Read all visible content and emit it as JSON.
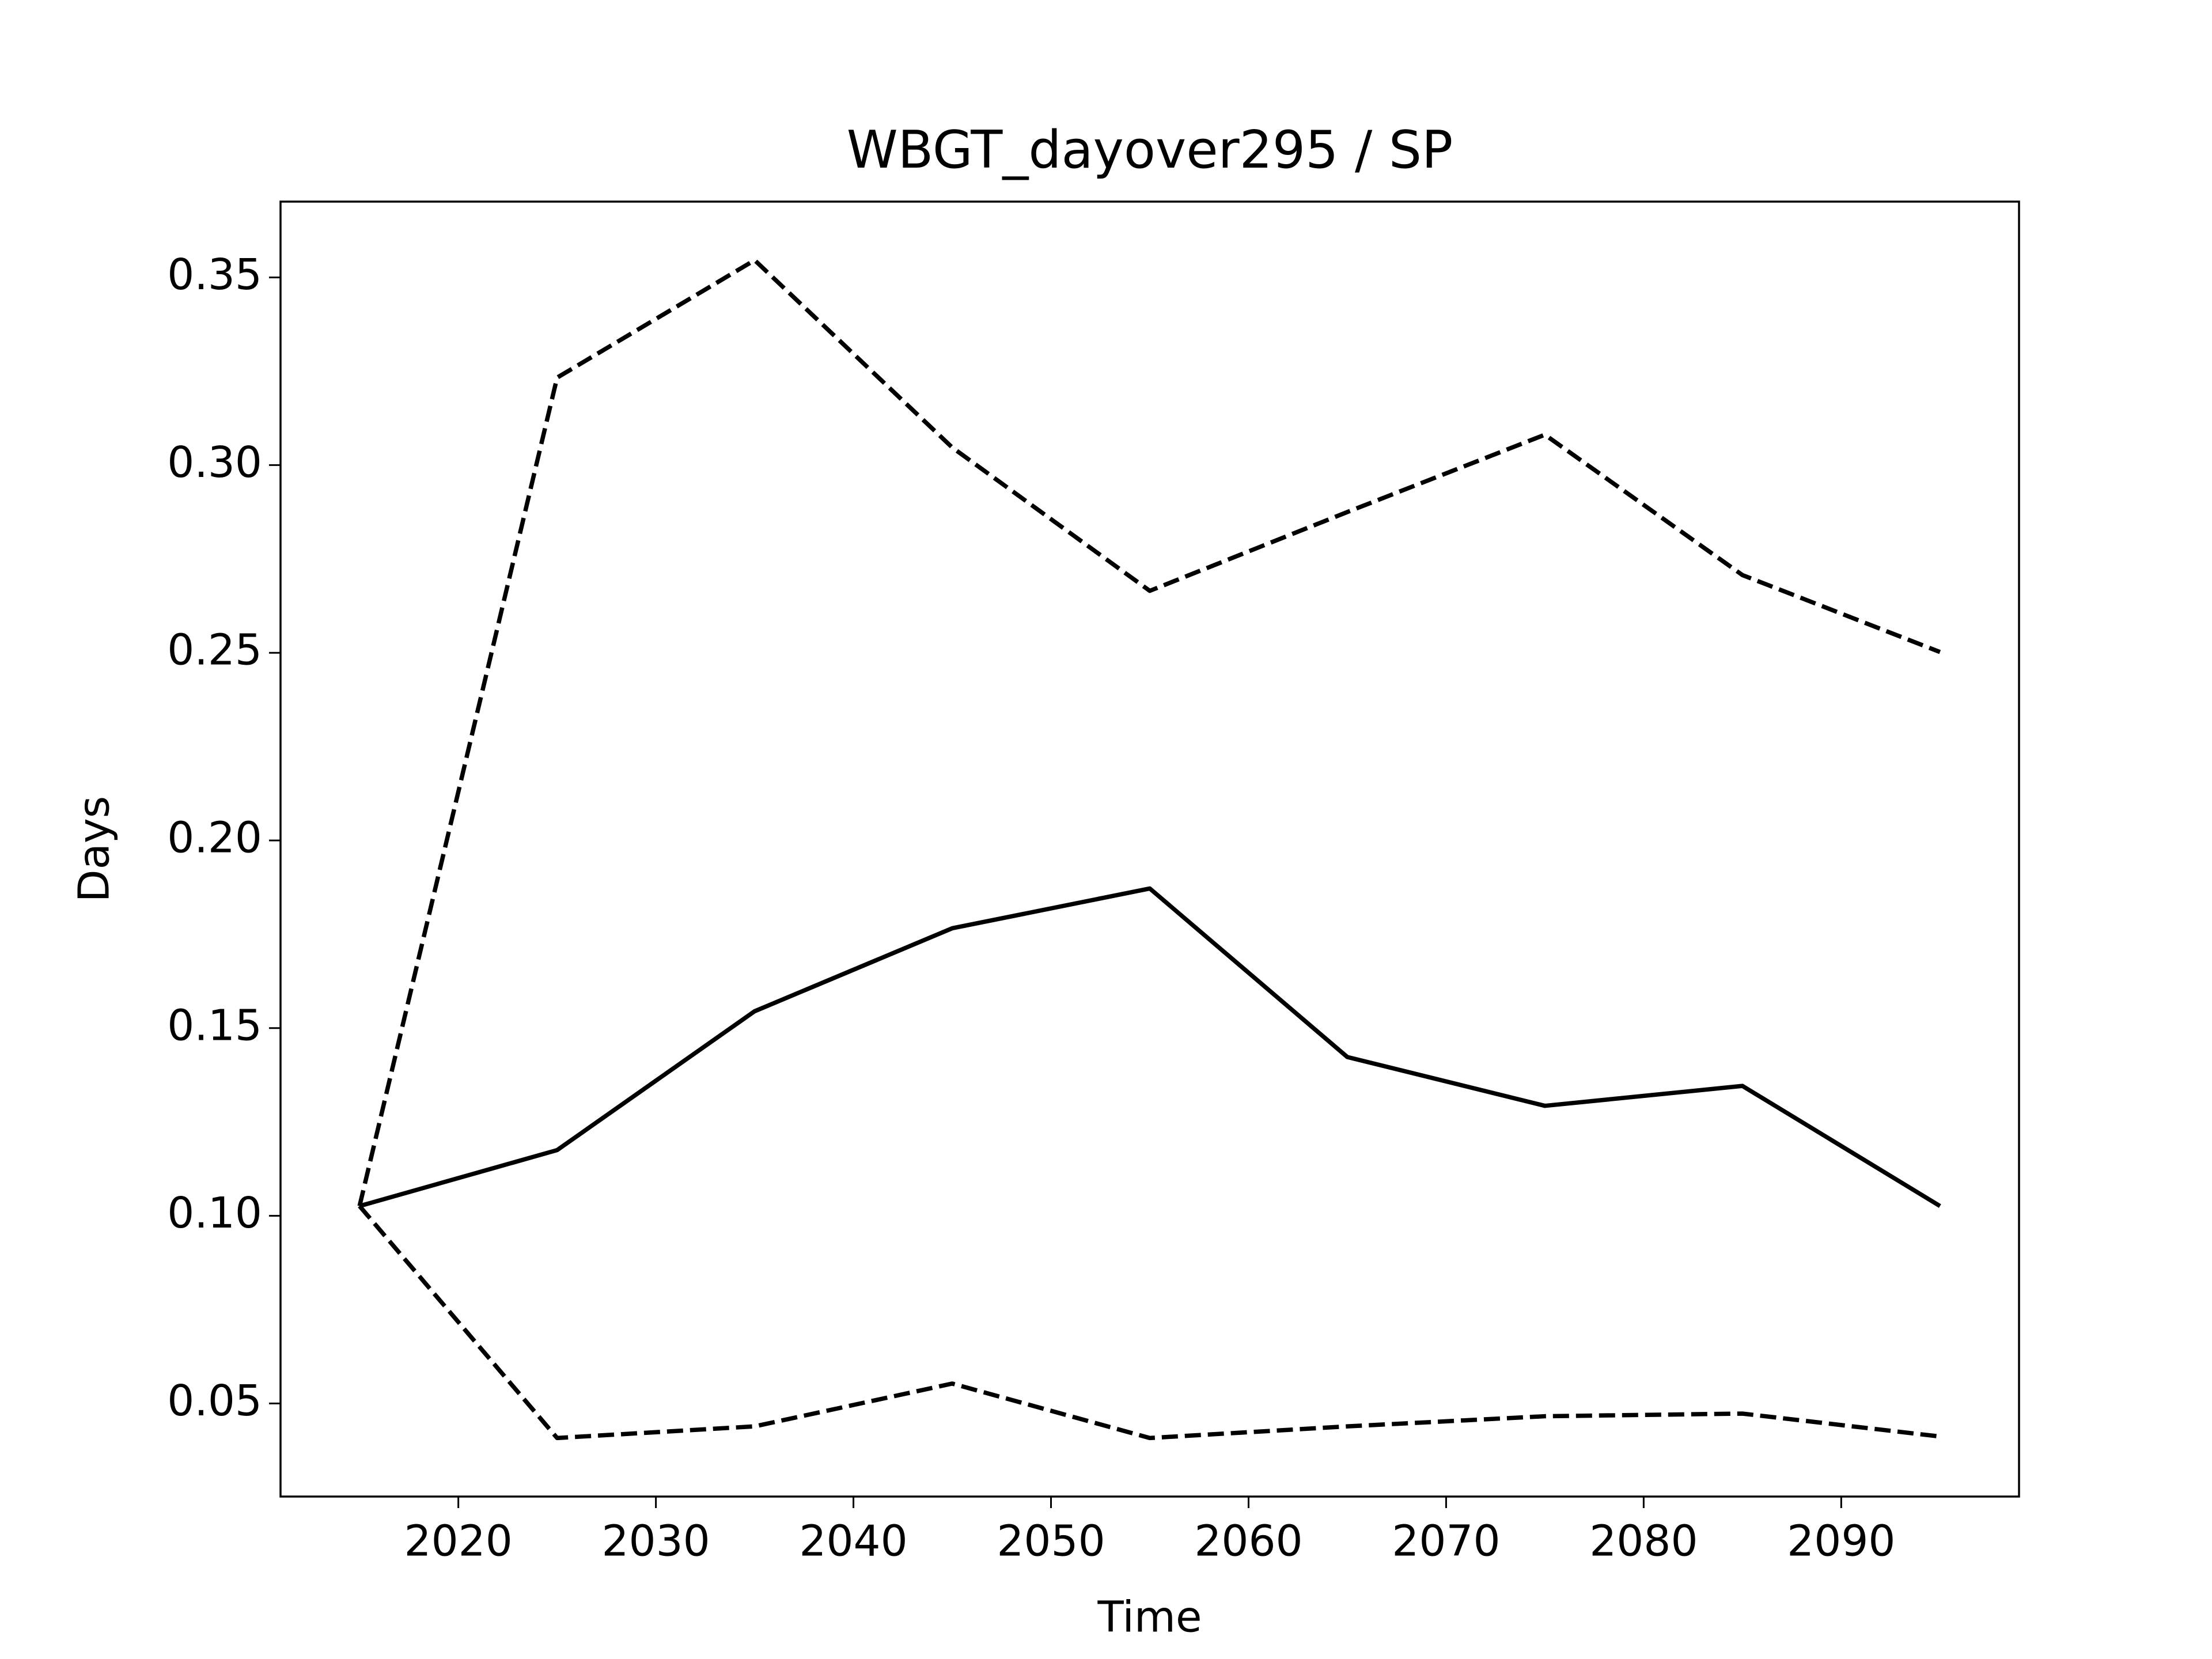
{
  "chart_data": {
    "type": "line",
    "title": "WBGT_dayover295 / SP",
    "x_label": "Time",
    "y_label": "Days",
    "x": [
      2015,
      2025,
      2035,
      2045,
      2055,
      2065,
      2075,
      2085,
      2095
    ],
    "series": [
      {
        "color": "#000000",
        "dashed": false,
        "values": [
          0.1026,
          0.1175,
          0.1545,
          0.1766,
          0.1872,
          0.1423,
          0.1293,
          0.1346,
          0.1026
        ]
      },
      {
        "color": "#000000",
        "dashed": true,
        "values": [
          0.1026,
          0.3233,
          0.3546,
          0.3047,
          0.2665,
          0.2875,
          0.3081,
          0.2707,
          0.2502
        ]
      },
      {
        "color": "#000000",
        "dashed": true,
        "values": [
          0.1026,
          0.0408,
          0.0439,
          0.0553,
          0.0408,
          0.0439,
          0.0466,
          0.0473,
          0.0412
        ]
      }
    ],
    "xlim": [
      2011,
      2099
    ],
    "xticks": [
      2020,
      2030,
      2040,
      2050,
      2060,
      2070,
      2080,
      2090
    ],
    "ylim": [
      0.0252,
      0.3702
    ],
    "yticks": [
      0.05,
      {
        "value": 0.1,
        "label": "0.10"
      },
      0.15,
      {
        "value": 0.2,
        "label": "0.20"
      },
      0.25,
      {
        "value": 0.3,
        "label": "0.30"
      },
      0.35
    ],
    "grid": false
  }
}
